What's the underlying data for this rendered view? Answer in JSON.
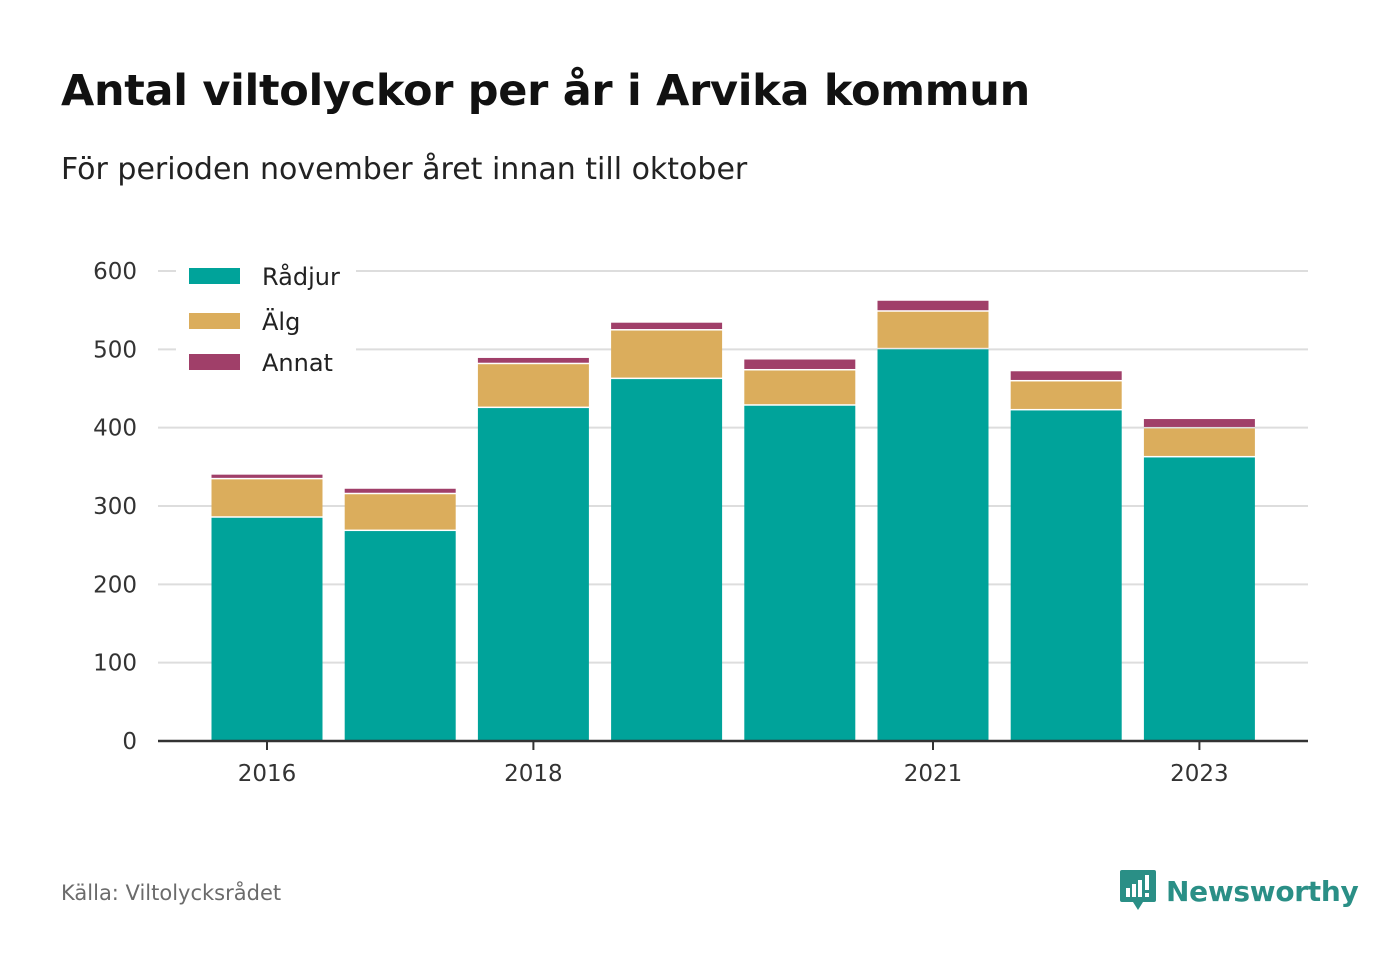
{
  "title": "Antal viltolyckor per år i Arvika kommun",
  "subtitle": "För perioden november året innan till oktober",
  "source": "Källa: Viltolycksrådet",
  "brand": "Newsworthy",
  "colors": {
    "radjur": "#00a39a",
    "alg": "#dbad5c",
    "annat": "#a03f69",
    "grid": "#dddddd",
    "axis": "#333333",
    "brand": "#2a8f86"
  },
  "chart_data": {
    "type": "bar",
    "stacked": true,
    "x": [
      2016,
      2017,
      2018,
      2019,
      2020,
      2021,
      2022,
      2023
    ],
    "xtick_labels": [
      {
        "x": 2016,
        "label": "2016"
      },
      {
        "x": 2018,
        "label": "2018"
      },
      {
        "x": 2021,
        "label": "2021"
      },
      {
        "x": 2023,
        "label": "2023"
      }
    ],
    "ylim": [
      0,
      600
    ],
    "yticks": [
      0,
      100,
      200,
      300,
      400,
      500,
      600
    ],
    "grid": true,
    "legend_position": "top-left",
    "series": [
      {
        "name": "Rådjur",
        "color": "#00a39a",
        "values": [
          285,
          268,
          425,
          462,
          428,
          500,
          422,
          362
        ]
      },
      {
        "name": "Älg",
        "color": "#dbad5c",
        "values": [
          49,
          47,
          56,
          62,
          45,
          48,
          37,
          37
        ]
      },
      {
        "name": "Annat",
        "color": "#a03f69",
        "values": [
          6,
          7,
          8,
          10,
          14,
          14,
          13,
          12
        ]
      }
    ]
  }
}
